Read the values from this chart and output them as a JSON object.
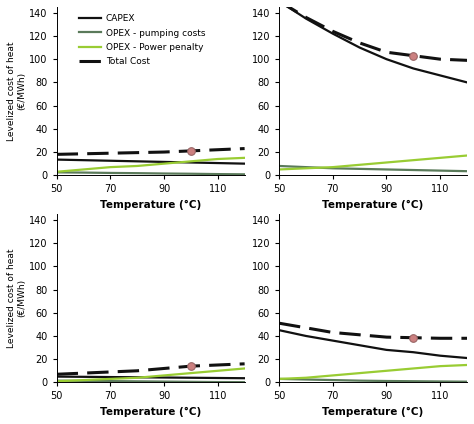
{
  "x": [
    50,
    60,
    70,
    80,
    90,
    100,
    110,
    120
  ],
  "subplots": [
    {
      "capex": [
        13.5,
        13,
        12.5,
        12,
        11.5,
        11,
        10.5,
        10
      ],
      "opex_pump": [
        2.5,
        2.3,
        2.0,
        1.8,
        1.5,
        1.3,
        1.0,
        0.8
      ],
      "opex_power": [
        3,
        5,
        7,
        8,
        10,
        12,
        14,
        15
      ],
      "total": [
        18,
        18.5,
        19,
        19.5,
        20,
        21,
        22,
        23
      ],
      "marker_x": 100,
      "marker_y": 21,
      "ylim": [
        0,
        145
      ]
    },
    {
      "capex": [
        150,
        135,
        122,
        110,
        100,
        92,
        86,
        80
      ],
      "opex_pump": [
        8,
        7,
        6,
        5.5,
        5,
        4.5,
        4.0,
        3.5
      ],
      "opex_power": [
        5,
        6,
        7,
        9,
        11,
        13,
        15,
        17
      ],
      "total": [
        150,
        136,
        124,
        114,
        106,
        103,
        100,
        99
      ],
      "marker_x": 100,
      "marker_y": 103,
      "ylim": [
        0,
        145
      ]
    },
    {
      "capex": [
        5,
        4.8,
        4.6,
        4.4,
        4.2,
        4.0,
        3.8,
        3.6
      ],
      "opex_pump": [
        1.5,
        1.3,
        1.1,
        0.9,
        0.7,
        0.5,
        0.3,
        0.2
      ],
      "opex_power": [
        1,
        2,
        3,
        4,
        6,
        8,
        10,
        12
      ],
      "total": [
        7,
        8,
        9,
        10,
        12,
        14,
        15,
        16
      ],
      "marker_x": 100,
      "marker_y": 14,
      "ylim": [
        0,
        145
      ]
    },
    {
      "capex": [
        45,
        40,
        36,
        32,
        28,
        26,
        23,
        21
      ],
      "opex_pump": [
        3,
        2.5,
        2.0,
        1.5,
        1.2,
        1.0,
        0.8,
        0.6
      ],
      "opex_power": [
        3,
        4,
        6,
        8,
        10,
        12,
        14,
        15
      ],
      "total": [
        51,
        47,
        43,
        41,
        39,
        38.5,
        38,
        38
      ],
      "marker_x": 100,
      "marker_y": 38.5,
      "ylim": [
        0,
        145
      ]
    }
  ],
  "legend_labels": [
    "CAPEX",
    "OPEX - pumping costs",
    "OPEX - Power penalty",
    "Total Cost"
  ],
  "colors": {
    "capex": "#111111",
    "opex_pump": "#5a7a5a",
    "opex_power": "#99cc33",
    "total": "#111111"
  },
  "marker_color": "#cc8080",
  "marker_edge": "#996666",
  "ylabel": "Levelized cost of heat\n(€/MWh)",
  "xlabel": "Temperature (°C)",
  "xticks": [
    50,
    70,
    90,
    110
  ],
  "yticks": [
    0,
    20,
    40,
    60,
    80,
    100,
    120,
    140
  ]
}
